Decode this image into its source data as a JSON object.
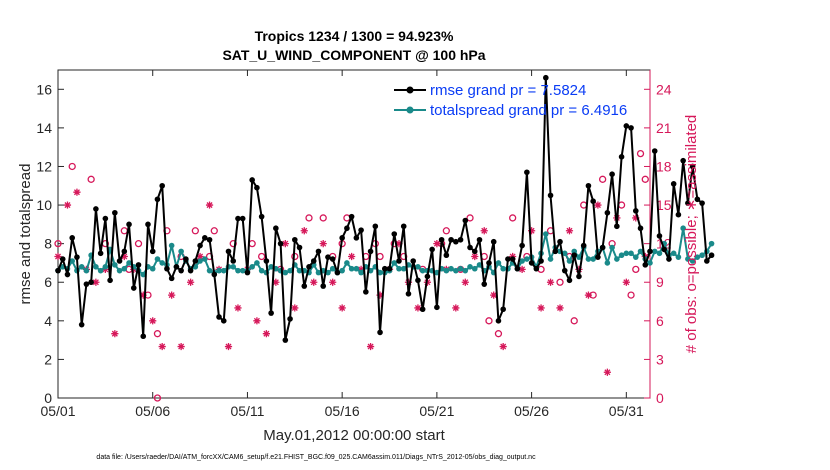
{
  "chart_data": {
    "type": "line",
    "title": "Tropics 1234 / 1300 = 94.923%",
    "subtitle": "SAT_U_WIND_COMPONENT @ 100 hPa",
    "xlabel": "May.01,2012 00:00:00 start",
    "ylabel": "rmse and totalspread",
    "y2label": "# of obs: o=possible; ∗=assimilated",
    "footer": "data file: /Users/raeder/DAI/ATM_forcXX/CAM6_setup/f.e21.FHIST_BGC.f09_025.CAM6assim.011/Diags_NTrS_2012-05/obs_diag_output.nc",
    "xlim": [
      0.0,
      31.25
    ],
    "ylim": [
      0,
      17
    ],
    "y2lim": [
      0,
      25.5
    ],
    "x_ticks": [
      0,
      5,
      10,
      15,
      20,
      25,
      30
    ],
    "x_tick_labels": [
      "05/01",
      "05/06",
      "05/11",
      "05/16",
      "05/21",
      "05/26",
      "05/31"
    ],
    "y_ticks": [
      0,
      2,
      4,
      6,
      8,
      10,
      12,
      14,
      16
    ],
    "y_tick_labels": [
      "0",
      "2",
      "4",
      "6",
      "8",
      "10",
      "12",
      "14",
      "16"
    ],
    "y2_ticks": [
      0,
      3,
      6,
      9,
      12,
      15,
      18,
      21,
      24
    ],
    "y2_tick_labels": [
      "0",
      "3",
      "6",
      "9",
      "12",
      "15",
      "18",
      "21",
      "24"
    ],
    "legend_position": "top-right",
    "colors": {
      "rmse": "#000000",
      "spread": "#1a8a8a",
      "obs": "#d6185a",
      "legend_text": "#0a3cf5"
    },
    "x_start": 0.0,
    "x_step": 0.25,
    "series": [
      {
        "name": "rmse grand pr = 7.5824",
        "color": "#000000",
        "values": [
          6.6,
          7.2,
          6.4,
          8.3,
          7.3,
          3.8,
          5.9,
          6.0,
          9.8,
          7.5,
          9.3,
          6.1,
          9.6,
          7.1,
          7.6,
          9.0,
          5.7,
          6.9,
          3.2,
          9.0,
          7.6,
          10.3,
          11.0,
          6.7,
          6.2,
          6.8,
          6.6,
          7.2,
          6.6,
          7.1,
          7.9,
          8.3,
          8.2,
          6.4,
          4.2,
          4.0,
          7.6,
          7.1,
          9.3,
          9.3,
          6.5,
          11.3,
          10.9,
          9.4,
          7.1,
          4.4,
          8.8,
          8.0,
          3.0,
          4.1,
          8.2,
          7.8,
          5.8,
          6.8,
          7.1,
          7.6,
          5.8,
          7.3,
          7.2,
          6.5,
          8.3,
          8.8,
          9.4,
          8.3,
          8.7,
          5.5,
          7.6,
          8.9,
          3.4,
          6.7,
          6.7,
          8.5,
          7.1,
          8.9,
          5.4,
          7.1,
          6.1,
          4.6,
          6.3,
          7.7,
          4.7,
          8.2,
          7.4,
          8.2,
          8.1,
          8.2,
          9.2,
          7.8,
          7.6,
          8.2,
          5.9,
          7.0,
          8.1,
          4.0,
          4.6,
          7.2,
          7.2,
          6.7,
          7.9,
          11.7,
          7.0,
          6.7,
          7.1,
          16.6,
          10.5,
          7.6,
          8.1,
          6.6,
          6.1,
          7.4,
          6.3,
          7.9,
          11.0,
          10.2,
          7.3,
          7.8,
          9.6,
          11.6,
          8.9,
          12.5,
          14.1,
          14.0,
          9.7,
          8.8,
          6.9,
          7.6,
          12.8,
          8.4,
          7.7,
          7.2,
          11.1,
          9.5,
          12.3,
          10.1,
          12.0,
          10.3,
          10.1,
          7.1,
          7.4
        ]
      },
      {
        "name": "totalspread grand pr = 6.4916",
        "color": "#1a8a8a",
        "values": [
          6.6,
          6.8,
          6.7,
          7.1,
          6.6,
          6.8,
          6.6,
          7.4,
          6.8,
          6.6,
          6.8,
          7.7,
          6.9,
          6.6,
          6.7,
          7.0,
          6.8,
          6.6,
          6.4,
          6.8,
          6.7,
          7.2,
          7.0,
          6.9,
          7.9,
          6.8,
          7.6,
          7.1,
          6.7,
          6.8,
          7.1,
          7.2,
          6.6,
          6.5,
          6.6,
          6.6,
          6.8,
          6.8,
          6.6,
          6.6,
          6.6,
          6.8,
          7.0,
          6.6,
          6.5,
          6.8,
          6.7,
          6.6,
          6.5,
          6.6,
          6.9,
          6.6,
          6.6,
          6.5,
          6.9,
          6.5,
          6.6,
          6.5,
          6.7,
          6.5,
          6.6,
          7.0,
          6.7,
          6.7,
          6.5,
          6.8,
          6.6,
          6.8,
          6.5,
          6.5,
          6.6,
          7.0,
          6.7,
          6.7,
          6.9,
          6.8,
          6.8,
          6.6,
          6.6,
          6.6,
          6.5,
          6.7,
          6.6,
          6.7,
          6.6,
          6.7,
          6.6,
          6.8,
          6.7,
          6.9,
          6.6,
          6.8,
          6.5,
          7.0,
          6.7,
          6.7,
          7.0,
          6.7,
          7.1,
          7.2,
          7.3,
          6.8,
          7.5,
          8.5,
          7.2,
          7.8,
          7.6,
          7.5,
          7.1,
          7.6,
          7.3,
          7.8,
          7.2,
          7.2,
          7.6,
          7.8,
          7.0,
          7.8,
          7.2,
          7.4,
          7.5,
          7.5,
          7.3,
          7.6,
          7.2,
          7.0,
          7.6,
          7.5,
          8.0,
          7.4,
          7.5,
          7.3,
          8.8,
          7.2,
          7.1,
          7.3,
          7.4,
          7.6,
          8.0
        ]
      }
    ],
    "obs_possible": [
      {
        "x": 0.0,
        "y": 12
      },
      {
        "x": 0.75,
        "y": 18
      },
      {
        "x": 1.75,
        "y": 17
      },
      {
        "x": 2.5,
        "y": 12
      },
      {
        "x": 3.5,
        "y": 13
      },
      {
        "x": 3.75,
        "y": 10
      },
      {
        "x": 4.25,
        "y": 12
      },
      {
        "x": 4.75,
        "y": 8
      },
      {
        "x": 5.25,
        "y": 5
      },
      {
        "x": 5.75,
        "y": 13
      },
      {
        "x": 5.25,
        "y": 0
      },
      {
        "x": 6.5,
        "y": 11
      },
      {
        "x": 7.25,
        "y": 13
      },
      {
        "x": 8.0,
        "y": 11
      },
      {
        "x": 8.25,
        "y": 13
      },
      {
        "x": 9.25,
        "y": 12
      },
      {
        "x": 10.25,
        "y": 12
      },
      {
        "x": 10.75,
        "y": 11
      },
      {
        "x": 11.75,
        "y": 10
      },
      {
        "x": 12.5,
        "y": 11
      },
      {
        "x": 13.25,
        "y": 14
      },
      {
        "x": 14.0,
        "y": 14
      },
      {
        "x": 14.5,
        "y": 11
      },
      {
        "x": 15.0,
        "y": 12
      },
      {
        "x": 15.25,
        "y": 14
      },
      {
        "x": 16.25,
        "y": 11
      },
      {
        "x": 16.75,
        "y": 12
      },
      {
        "x": 17.0,
        "y": 11
      },
      {
        "x": 17.75,
        "y": 12
      },
      {
        "x": 18.25,
        "y": 11
      },
      {
        "x": 19.25,
        "y": 10
      },
      {
        "x": 20.25,
        "y": 12
      },
      {
        "x": 20.5,
        "y": 13
      },
      {
        "x": 21.25,
        "y": 10
      },
      {
        "x": 21.75,
        "y": 14
      },
      {
        "x": 22.5,
        "y": 11
      },
      {
        "x": 22.75,
        "y": 6
      },
      {
        "x": 23.25,
        "y": 5
      },
      {
        "x": 24.0,
        "y": 14
      },
      {
        "x": 24.75,
        "y": 11
      },
      {
        "x": 25.5,
        "y": 10
      },
      {
        "x": 26.0,
        "y": 13
      },
      {
        "x": 26.5,
        "y": 9
      },
      {
        "x": 27.0,
        "y": 11
      },
      {
        "x": 27.25,
        "y": 6
      },
      {
        "x": 27.75,
        "y": 15
      },
      {
        "x": 28.25,
        "y": 8
      },
      {
        "x": 28.75,
        "y": 17
      },
      {
        "x": 29.25,
        "y": 12
      },
      {
        "x": 29.75,
        "y": 15
      },
      {
        "x": 30.25,
        "y": 8
      },
      {
        "x": 30.5,
        "y": 10
      },
      {
        "x": 30.75,
        "y": 19
      },
      {
        "x": 31.0,
        "y": 17
      }
    ],
    "obs_assimilated": [
      {
        "x": 0.0,
        "y": 11
      },
      {
        "x": 0.5,
        "y": 15
      },
      {
        "x": 1.0,
        "y": 16
      },
      {
        "x": 1.5,
        "y": 10
      },
      {
        "x": 2.0,
        "y": 9
      },
      {
        "x": 2.5,
        "y": 10
      },
      {
        "x": 3.0,
        "y": 5
      },
      {
        "x": 3.5,
        "y": 11
      },
      {
        "x": 4.0,
        "y": 10
      },
      {
        "x": 4.5,
        "y": 8
      },
      {
        "x": 5.0,
        "y": 6
      },
      {
        "x": 5.5,
        "y": 4
      },
      {
        "x": 6.0,
        "y": 8
      },
      {
        "x": 6.5,
        "y": 4
      },
      {
        "x": 7.0,
        "y": 9
      },
      {
        "x": 7.5,
        "y": 11
      },
      {
        "x": 8.0,
        "y": 15
      },
      {
        "x": 8.5,
        "y": 10
      },
      {
        "x": 9.0,
        "y": 4
      },
      {
        "x": 9.5,
        "y": 7
      },
      {
        "x": 10.0,
        "y": 10
      },
      {
        "x": 10.5,
        "y": 6
      },
      {
        "x": 11.0,
        "y": 5
      },
      {
        "x": 11.5,
        "y": 9
      },
      {
        "x": 12.0,
        "y": 12
      },
      {
        "x": 12.5,
        "y": 7
      },
      {
        "x": 13.0,
        "y": 13
      },
      {
        "x": 13.5,
        "y": 9
      },
      {
        "x": 14.0,
        "y": 12
      },
      {
        "x": 14.5,
        "y": 9
      },
      {
        "x": 15.0,
        "y": 7
      },
      {
        "x": 15.5,
        "y": 11
      },
      {
        "x": 16.0,
        "y": 10
      },
      {
        "x": 16.5,
        "y": 4
      },
      {
        "x": 17.0,
        "y": 8
      },
      {
        "x": 17.5,
        "y": 10
      },
      {
        "x": 18.0,
        "y": 12
      },
      {
        "x": 18.5,
        "y": 9
      },
      {
        "x": 19.0,
        "y": 7
      },
      {
        "x": 19.5,
        "y": 9
      },
      {
        "x": 20.0,
        "y": 12
      },
      {
        "x": 20.5,
        "y": 10
      },
      {
        "x": 21.0,
        "y": 7
      },
      {
        "x": 21.5,
        "y": 9
      },
      {
        "x": 22.0,
        "y": 11
      },
      {
        "x": 22.5,
        "y": 13
      },
      {
        "x": 23.0,
        "y": 8
      },
      {
        "x": 23.5,
        "y": 4
      },
      {
        "x": 24.0,
        "y": 11
      },
      {
        "x": 24.5,
        "y": 10
      },
      {
        "x": 25.0,
        "y": 13
      },
      {
        "x": 25.5,
        "y": 7
      },
      {
        "x": 26.0,
        "y": 9
      },
      {
        "x": 26.5,
        "y": 7
      },
      {
        "x": 27.0,
        "y": 13
      },
      {
        "x": 27.5,
        "y": 10
      },
      {
        "x": 28.0,
        "y": 8
      },
      {
        "x": 28.5,
        "y": 15
      },
      {
        "x": 29.0,
        "y": 2
      },
      {
        "x": 29.5,
        "y": 14
      },
      {
        "x": 30.0,
        "y": 9
      },
      {
        "x": 30.5,
        "y": 14
      },
      {
        "x": 31.0,
        "y": 11
      }
    ]
  }
}
